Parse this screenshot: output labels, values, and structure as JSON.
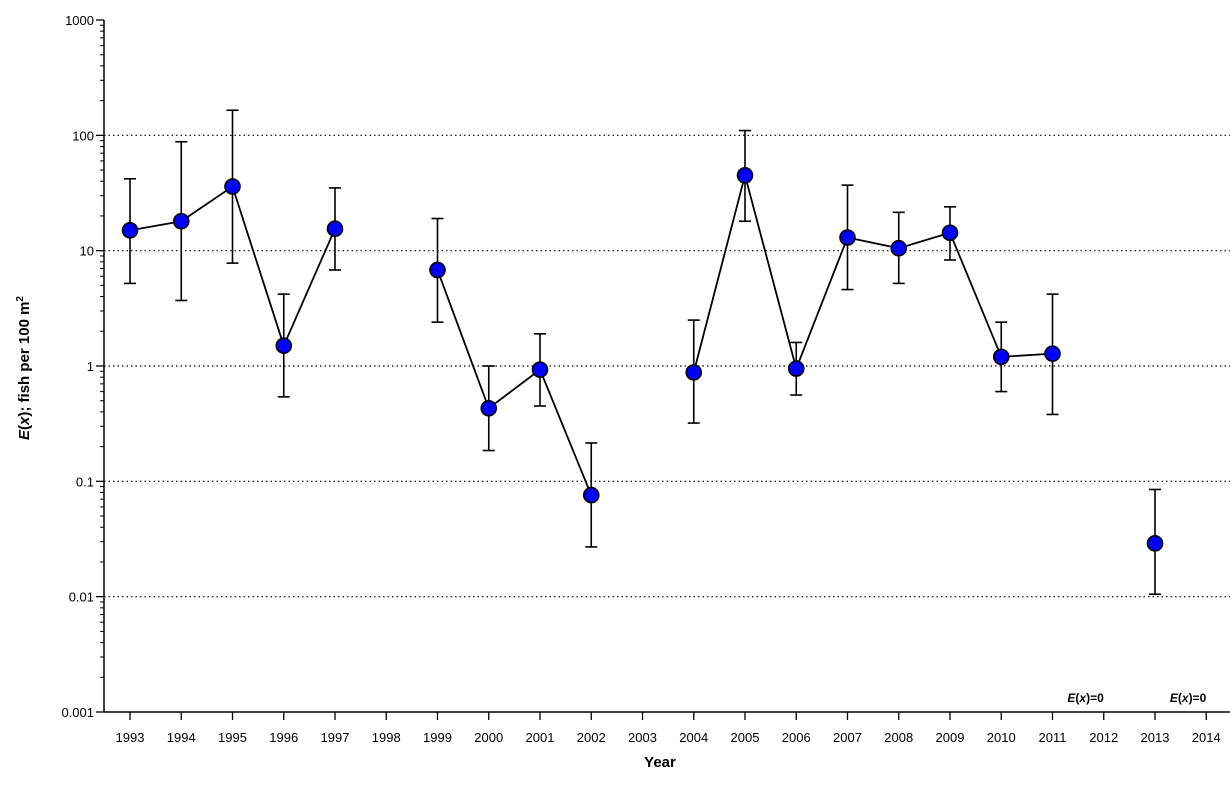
{
  "chart_data": {
    "type": "scatter",
    "ylabel_parts": {
      "e": "E",
      "open": "(",
      "x": "x",
      "close": ")",
      "rest": "; fish per 100 m",
      "sup": "2"
    },
    "xlabel": "Year",
    "yscale": "log",
    "ylim": [
      0.001,
      1000
    ],
    "yticks": [
      "0.001",
      "0.01",
      "0.1",
      "1",
      "10",
      "100",
      "1000"
    ],
    "grid": "horizontal dotted",
    "categories": [
      "1993",
      "1994",
      "1995",
      "1996",
      "1997",
      "1998",
      "1999",
      "2000",
      "2001",
      "2002",
      "2003",
      "2004",
      "2005",
      "2006",
      "2007",
      "2008",
      "2009",
      "2010",
      "2011",
      "2012",
      "2013",
      "2014"
    ],
    "series": [
      {
        "marker_color": "#0000ff",
        "points": [
          {
            "year": "1993",
            "y": 15,
            "lo": 5.2,
            "hi": 42
          },
          {
            "year": "1994",
            "y": 18,
            "lo": 3.7,
            "hi": 88
          },
          {
            "year": "1995",
            "y": 36,
            "lo": 7.8,
            "hi": 165
          },
          {
            "year": "1996",
            "y": 1.5,
            "lo": 0.54,
            "hi": 4.2
          },
          {
            "year": "1997",
            "y": 15.5,
            "lo": 6.8,
            "hi": 35
          },
          {
            "year": "1999",
            "y": 6.8,
            "lo": 2.4,
            "hi": 19
          },
          {
            "year": "2000",
            "y": 0.43,
            "lo": 0.185,
            "hi": 1.0
          },
          {
            "year": "2001",
            "y": 0.93,
            "lo": 0.45,
            "hi": 1.9
          },
          {
            "year": "2002",
            "y": 0.076,
            "lo": 0.027,
            "hi": 0.215
          },
          {
            "year": "2004",
            "y": 0.88,
            "lo": 0.32,
            "hi": 2.5
          },
          {
            "year": "2005",
            "y": 45,
            "lo": 18,
            "hi": 110
          },
          {
            "year": "2006",
            "y": 0.95,
            "lo": 0.56,
            "hi": 1.6
          },
          {
            "year": "2007",
            "y": 13,
            "lo": 4.6,
            "hi": 37
          },
          {
            "year": "2008",
            "y": 10.5,
            "lo": 5.2,
            "hi": 21.5
          },
          {
            "year": "2009",
            "y": 14.3,
            "lo": 8.3,
            "hi": 24
          },
          {
            "year": "2010",
            "y": 1.2,
            "lo": 0.6,
            "hi": 2.4
          },
          {
            "year": "2011",
            "y": 1.28,
            "lo": 0.38,
            "hi": 4.2
          },
          {
            "year": "2013",
            "y": 0.029,
            "lo": 0.0105,
            "hi": 0.085
          }
        ],
        "line_segments": [
          [
            "1993",
            "1994",
            "1995",
            "1996",
            "1997"
          ],
          [
            "1999",
            "2000",
            "2001",
            "2002"
          ],
          [
            "2004",
            "2005",
            "2006",
            "2007",
            "2008",
            "2009",
            "2010",
            "2011"
          ]
        ]
      }
    ],
    "annotations": [
      {
        "year": "2012",
        "e": "E",
        "open": "(",
        "x": "x",
        "close": ")",
        "rest": "=0"
      },
      {
        "year": "2014",
        "e": "E",
        "open": "(",
        "x": "x",
        "close": ")",
        "rest": "=0"
      }
    ]
  }
}
